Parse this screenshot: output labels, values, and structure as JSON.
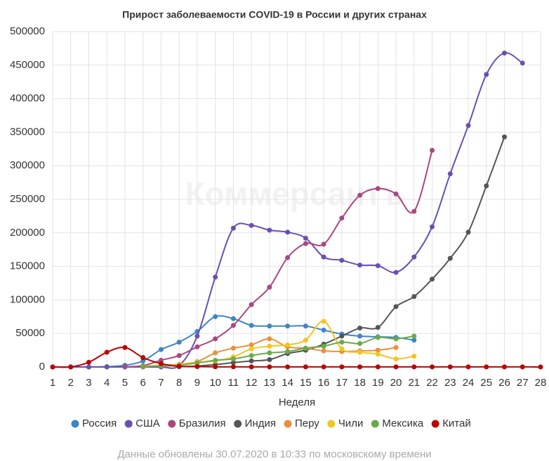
{
  "chart_data": {
    "type": "line",
    "title": "Прирост заболеваемости COVID-19 в России и других странах",
    "watermark": "Коммерсантъ",
    "x_label": "Неделя",
    "footnote": "Данные обновлены 30.07.2020 в 10:33 по московскому времени",
    "x": [
      1,
      2,
      3,
      4,
      5,
      6,
      7,
      8,
      9,
      10,
      11,
      12,
      13,
      14,
      15,
      16,
      17,
      18,
      19,
      20,
      21,
      22,
      23,
      24,
      25,
      26,
      27,
      28
    ],
    "xlim": [
      1,
      28
    ],
    "xticks": [
      1,
      2,
      3,
      4,
      5,
      6,
      7,
      8,
      9,
      10,
      11,
      12,
      13,
      14,
      15,
      16,
      17,
      18,
      19,
      20,
      21,
      22,
      23,
      24,
      25,
      26,
      27,
      28
    ],
    "ylim": [
      0,
      500000
    ],
    "yticks": [
      0,
      50000,
      100000,
      150000,
      200000,
      250000,
      300000,
      350000,
      400000,
      450000,
      500000
    ],
    "grid": true,
    "legend": "bottom",
    "series": [
      {
        "name": "Россия",
        "color": "#3d85c6",
        "values": [
          0,
          0,
          0,
          500,
          2500,
          9000,
          26000,
          37000,
          53000,
          75000,
          72000,
          62000,
          61000,
          61000,
          61000,
          55000,
          49000,
          46000,
          45000,
          44000,
          40000,
          null,
          null,
          null,
          null,
          null,
          null,
          null
        ]
      },
      {
        "name": "США",
        "color": "#6a4fb0",
        "values": [
          0,
          0,
          0,
          0,
          0,
          0,
          0,
          2000,
          46000,
          134000,
          207000,
          211000,
          204000,
          201000,
          192000,
          164000,
          159000,
          152000,
          151000,
          141000,
          164000,
          209000,
          288000,
          360000,
          436000,
          468000,
          453000,
          null
        ]
      },
      {
        "name": "Бразилия",
        "color": "#a9477f",
        "values": [
          null,
          null,
          null,
          null,
          200,
          2000,
          10000,
          17000,
          30000,
          42000,
          62000,
          93000,
          119000,
          163000,
          184000,
          183000,
          222000,
          256000,
          266000,
          258000,
          232000,
          323000,
          null,
          null,
          null,
          null,
          null,
          null
        ]
      },
      {
        "name": "Индия",
        "color": "#555555",
        "values": [
          null,
          null,
          null,
          null,
          null,
          null,
          null,
          500,
          1500,
          3500,
          6500,
          9000,
          11000,
          20000,
          25000,
          34000,
          46000,
          58000,
          59000,
          90000,
          105000,
          131000,
          162000,
          201000,
          270000,
          343000,
          null,
          null
        ]
      },
      {
        "name": "Перу",
        "color": "#e8903b",
        "values": [
          null,
          null,
          null,
          null,
          null,
          500,
          2000,
          4000,
          8000,
          21000,
          28000,
          33000,
          42000,
          30000,
          28000,
          24000,
          23000,
          24000,
          25000,
          29000,
          null,
          null,
          null,
          null,
          null,
          null,
          null,
          null
        ]
      },
      {
        "name": "Чили",
        "color": "#f2c51f",
        "values": [
          null,
          null,
          null,
          null,
          null,
          1000,
          2500,
          4000,
          7000,
          9000,
          15000,
          27000,
          31000,
          33000,
          40000,
          68000,
          27000,
          22000,
          19000,
          12000,
          16000,
          null,
          null,
          null,
          null,
          null,
          null,
          null
        ]
      },
      {
        "name": "Мексика",
        "color": "#6aaa4a",
        "values": [
          null,
          null,
          null,
          null,
          null,
          500,
          1500,
          2500,
          6000,
          10000,
          12000,
          17000,
          21000,
          23000,
          28000,
          31000,
          37000,
          35000,
          44000,
          42000,
          46000,
          null,
          null,
          null,
          null,
          null,
          null,
          null
        ]
      },
      {
        "name": "Китай",
        "color": "#c00000",
        "values": [
          0,
          100,
          7000,
          22000,
          29000,
          14000,
          5000,
          1000,
          500,
          200,
          200,
          100,
          100,
          100,
          100,
          100,
          100,
          100,
          100,
          100,
          100,
          100,
          100,
          100,
          100,
          100,
          100,
          0
        ]
      }
    ]
  }
}
